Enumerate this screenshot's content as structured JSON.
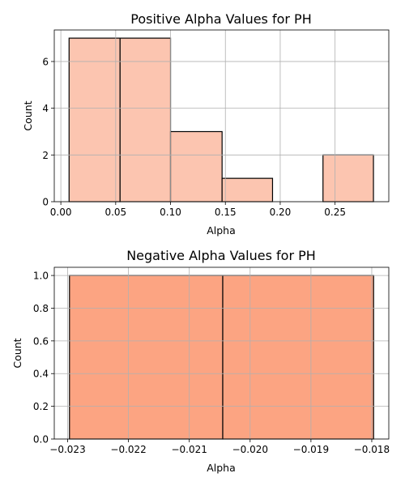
{
  "chart_data": [
    {
      "type": "bar",
      "subtype": "histogram",
      "title": "Positive Alpha Values for PH",
      "xlabel": "Alpha",
      "ylabel": "Count",
      "bins": [
        {
          "x0": 0.0075,
          "x1": 0.054,
          "count": 7
        },
        {
          "x0": 0.054,
          "x1": 0.1,
          "count": 7
        },
        {
          "x0": 0.1,
          "x1": 0.147,
          "count": 3
        },
        {
          "x0": 0.147,
          "x1": 0.193,
          "count": 1
        },
        {
          "x0": 0.193,
          "x1": 0.239,
          "count": 0
        },
        {
          "x0": 0.239,
          "x1": 0.285,
          "count": 2
        }
      ],
      "xlim": [
        -0.006,
        0.299
      ],
      "ylim": [
        0,
        7.35
      ],
      "xticks": [
        0.0,
        0.05,
        0.1,
        0.15,
        0.2,
        0.25
      ],
      "xtick_labels": [
        "0.00",
        "0.05",
        "0.10",
        "0.15",
        "0.20",
        "0.25"
      ],
      "yticks": [
        0,
        2,
        4,
        6
      ],
      "ytick_labels": [
        "0",
        "2",
        "4",
        "6"
      ],
      "grid": true,
      "bar_color": "#fcc5b0",
      "edge_color": "#000000"
    },
    {
      "type": "bar",
      "subtype": "histogram",
      "title": "Negative Alpha Values for PH",
      "xlabel": "Alpha",
      "ylabel": "Count",
      "bins": [
        {
          "x0": -0.02297,
          "x1": -0.02045,
          "count": 1
        },
        {
          "x0": -0.02045,
          "x1": -0.01797,
          "count": 1
        }
      ],
      "xlim": [
        -0.02322,
        -0.01772
      ],
      "ylim": [
        0,
        1.05
      ],
      "xticks": [
        -0.023,
        -0.022,
        -0.021,
        -0.02,
        -0.019,
        -0.018
      ],
      "xtick_labels": [
        "−0.023",
        "−0.022",
        "−0.021",
        "−0.020",
        "−0.019",
        "−0.018"
      ],
      "yticks": [
        0,
        0.2,
        0.4,
        0.6,
        0.8,
        1.0
      ],
      "ytick_labels": [
        "0.0",
        "0.2",
        "0.4",
        "0.6",
        "0.8",
        "1.0"
      ],
      "grid": true,
      "bar_color": "#fca482",
      "edge_color": "#000000"
    }
  ]
}
